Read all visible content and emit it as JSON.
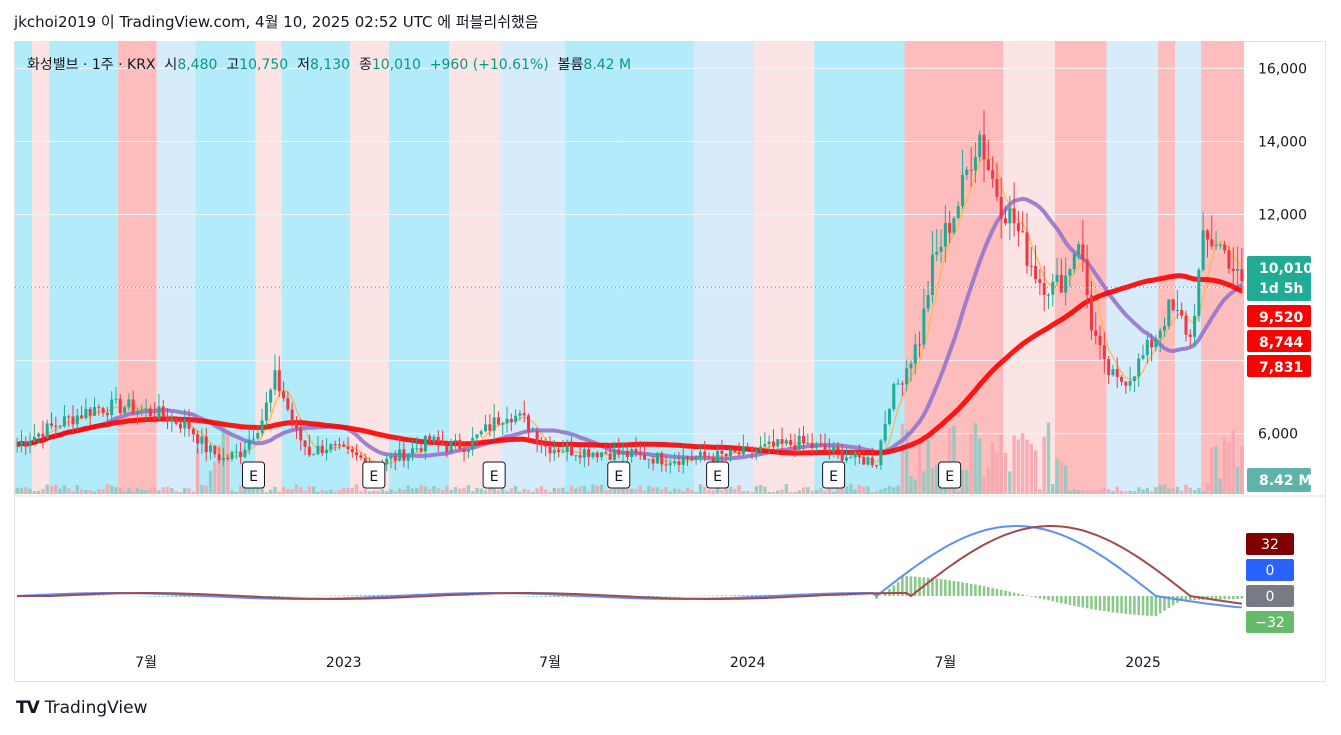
{
  "header": {
    "title": "jkchoi2019 이 TradingView.com, 4월 10, 2025 02:52 UTC 에 퍼블리쉬했음"
  },
  "legend": {
    "symbol": "화성밸브 · 1주 · KRX",
    "open_label": "시",
    "open": "8,480",
    "high_label": "고",
    "high": "10,750",
    "low_label": "저",
    "low": "8,130",
    "close_label": "종",
    "close": "10,010",
    "change": "+960 (+10.61%)",
    "volume_label": "볼륨",
    "volume": "8.42 M"
  },
  "footer": {
    "brand": "TradingView",
    "logo": "TV"
  },
  "colors": {
    "up": "#22ab94",
    "down": "#f23645",
    "ema": "#ff0000",
    "bg_red": "#fdbdbd",
    "bg_pink": "#fde4e4",
    "bg_cyan": "#b2ebf9",
    "bg_lightblue": "#d6ecfb",
    "macd": "#5f8ef7",
    "signal": "#a24b4b",
    "hist": "#89c98a"
  },
  "chart_data": {
    "type": "candlestick",
    "title": "화성밸브 · 1주 · KRX",
    "price_axis": {
      "ticks": [
        6000,
        8000,
        10000,
        12000,
        14000,
        16000
      ],
      "ylim": [
        4350,
        16750
      ]
    },
    "time_axis": [
      "7월",
      "2023",
      "7월",
      "2024",
      "7월",
      "2025"
    ],
    "last_price": {
      "value": "10,010",
      "countdown": "1d 5h"
    },
    "ma_labels": [
      "9,520",
      "8,744",
      "7,831"
    ],
    "volume_label": "8.42 M",
    "earnings_markers": [
      "E",
      "E",
      "E",
      "E",
      "E",
      "E",
      "E"
    ],
    "macd_labels": [
      "32",
      "0",
      "0",
      "−32"
    ],
    "price_path": [
      [
        0,
        5700
      ],
      [
        10,
        6300
      ],
      [
        18,
        6700
      ],
      [
        25,
        6750
      ],
      [
        34,
        6500
      ],
      [
        40,
        6200
      ],
      [
        44,
        5600
      ],
      [
        48,
        5300
      ],
      [
        52,
        5500
      ],
      [
        57,
        6400
      ],
      [
        60,
        7500
      ],
      [
        62,
        7000
      ],
      [
        65,
        6000
      ],
      [
        68,
        5500
      ],
      [
        72,
        5650
      ],
      [
        78,
        5400
      ],
      [
        84,
        5150
      ],
      [
        90,
        5450
      ],
      [
        96,
        5800
      ],
      [
        100,
        5650
      ],
      [
        105,
        5700
      ],
      [
        110,
        6200
      ],
      [
        114,
        6600
      ],
      [
        118,
        6350
      ],
      [
        123,
        5650
      ],
      [
        129,
        5550
      ],
      [
        136,
        5500
      ],
      [
        144,
        5400
      ],
      [
        151,
        5300
      ],
      [
        158,
        5350
      ],
      [
        166,
        5400
      ],
      [
        174,
        5600
      ],
      [
        182,
        5750
      ],
      [
        190,
        5500
      ],
      [
        196,
        5300
      ],
      [
        200,
        5250
      ],
      [
        203,
        6900
      ],
      [
        206,
        7600
      ],
      [
        210,
        8600
      ],
      [
        213,
        10600
      ],
      [
        216,
        11500
      ],
      [
        219,
        12300
      ],
      [
        222,
        13600
      ],
      [
        224,
        14200
      ],
      [
        226,
        13300
      ],
      [
        229,
        12300
      ],
      [
        232,
        11800
      ],
      [
        235,
        10900
      ],
      [
        238,
        10200
      ],
      [
        241,
        10000
      ],
      [
        244,
        10300
      ],
      [
        247,
        11400
      ],
      [
        250,
        9000
      ],
      [
        253,
        7800
      ],
      [
        256,
        7400
      ],
      [
        259,
        7600
      ],
      [
        262,
        8100
      ],
      [
        265,
        8700
      ],
      [
        268,
        9400
      ],
      [
        271,
        9100
      ],
      [
        273,
        8600
      ],
      [
        276,
        11200
      ],
      [
        279,
        11300
      ],
      [
        282,
        10800
      ],
      [
        285,
        10010
      ]
    ],
    "bg_bands": [
      {
        "from": 0,
        "to": 4,
        "color": "cyan"
      },
      {
        "from": 4,
        "to": 8,
        "color": "pink"
      },
      {
        "from": 8,
        "to": 24,
        "color": "cyan"
      },
      {
        "from": 24,
        "to": 33,
        "color": "red"
      },
      {
        "from": 33,
        "to": 42,
        "color": "lightblue"
      },
      {
        "from": 42,
        "to": 56,
        "color": "cyan"
      },
      {
        "from": 56,
        "to": 62,
        "color": "pink"
      },
      {
        "from": 62,
        "to": 78,
        "color": "cyan"
      },
      {
        "from": 78,
        "to": 87,
        "color": "pink"
      },
      {
        "from": 87,
        "to": 101,
        "color": "cyan"
      },
      {
        "from": 101,
        "to": 113,
        "color": "pink"
      },
      {
        "from": 113,
        "to": 128,
        "color": "lightblue"
      },
      {
        "from": 128,
        "to": 140,
        "color": "cyan"
      },
      {
        "from": 140,
        "to": 158,
        "color": "cyan"
      },
      {
        "from": 158,
        "to": 172,
        "color": "lightblue"
      },
      {
        "from": 172,
        "to": 186,
        "color": "pink"
      },
      {
        "from": 186,
        "to": 207,
        "color": "cyan"
      },
      {
        "from": 207,
        "to": 230,
        "color": "red"
      },
      {
        "from": 230,
        "to": 242,
        "color": "pink"
      },
      {
        "from": 242,
        "to": 254,
        "color": "red"
      },
      {
        "from": 254,
        "to": 266,
        "color": "lightblue"
      },
      {
        "from": 266,
        "to": 270,
        "color": "red"
      },
      {
        "from": 270,
        "to": 276,
        "color": "lightblue"
      },
      {
        "from": 276,
        "to": 286,
        "color": "red"
      }
    ]
  }
}
